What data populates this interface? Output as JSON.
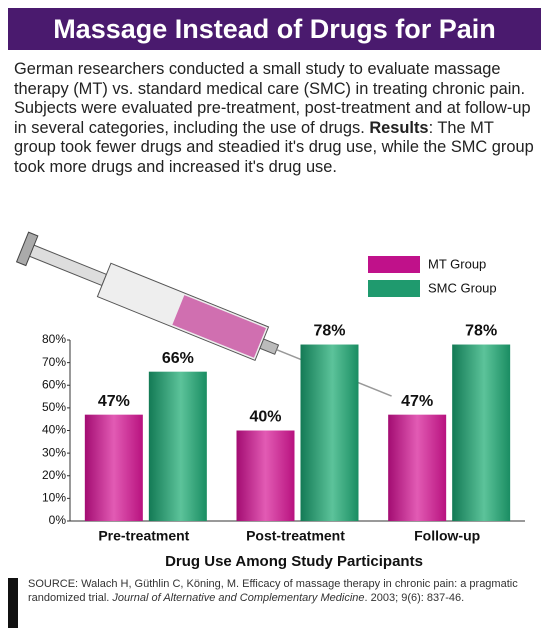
{
  "description": {
    "before": "German researchers conducted a small study to evaluate massage therapy (MT) vs. standard medical care (SMC) in treating chronic pain. Subjects were evaluated pre-treatment, post-treatment and at follow-up in several categories, including the use of drugs. ",
    "bold": "Results",
    "after": ": The MT group took fewer drugs and steadied it's drug use, while the SMC group took more drugs and increased it's drug use."
  },
  "source": {
    "text1": "SOURCE: Walach H, Güthlin C, Köning, M. Efficacy of massage therapy in chronic pain: a pragmatic randomized trial.",
    "journal": "Journal of Alternative and Complementary Medicine",
    "text2": ". 2003; 9(6): 837-46."
  },
  "chart_data": {
    "type": "bar",
    "title": "Massage Instead of Drugs for Pain",
    "x_label": "Drug Use Among Study Participants",
    "categories": [
      "Pre-treatment",
      "Post-treatment",
      "Follow-up"
    ],
    "series": [
      {
        "name": "MT Group",
        "color": "#c0118a",
        "values": [
          47,
          40,
          47
        ],
        "value_labels": [
          "47%",
          "40%",
          "47%"
        ]
      },
      {
        "name": "SMC Group",
        "color": "#1f9a6e",
        "values": [
          66,
          78,
          78
        ],
        "value_labels": [
          "66%",
          "78%",
          "78%"
        ]
      }
    ],
    "ylim": [
      0,
      80
    ],
    "yticks": [
      {
        "value": 0,
        "label": "0%"
      },
      {
        "value": 10,
        "label": "10%"
      },
      {
        "value": 20,
        "label": "20%"
      },
      {
        "value": 30,
        "label": "30%"
      },
      {
        "value": 40,
        "label": "40%"
      },
      {
        "value": 50,
        "label": "50%"
      },
      {
        "value": 60,
        "label": "60%"
      },
      {
        "value": 70,
        "label": "70%"
      },
      {
        "value": 80,
        "label": "80%"
      }
    ],
    "grid": false
  }
}
